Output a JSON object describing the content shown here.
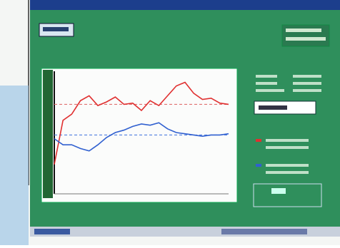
{
  "chart_data": {
    "type": "line",
    "x": [
      0,
      5,
      10,
      15,
      20,
      25,
      30,
      35,
      40,
      45,
      50,
      55,
      60,
      65,
      70,
      75,
      80,
      85,
      90,
      95,
      100
    ],
    "xlim": [
      0,
      100
    ],
    "ylim": [
      0,
      100
    ],
    "series": [
      {
        "color": "#e03030",
        "values": [
          24,
          60,
          65,
          76,
          80,
          72,
          75,
          79,
          73,
          74,
          68,
          76,
          72,
          80,
          88,
          91,
          82,
          77,
          78,
          74,
          73
        ]
      },
      {
        "color": "#3060d0",
        "values": [
          45,
          40,
          40,
          37,
          35,
          40,
          46,
          50,
          52,
          55,
          57,
          56,
          58,
          53,
          50,
          49,
          48,
          47,
          48,
          48,
          49
        ]
      }
    ],
    "reference_lines": [
      {
        "value": 73,
        "color": "#e07070"
      },
      {
        "value": 48,
        "color": "#5080e0"
      }
    ]
  }
}
